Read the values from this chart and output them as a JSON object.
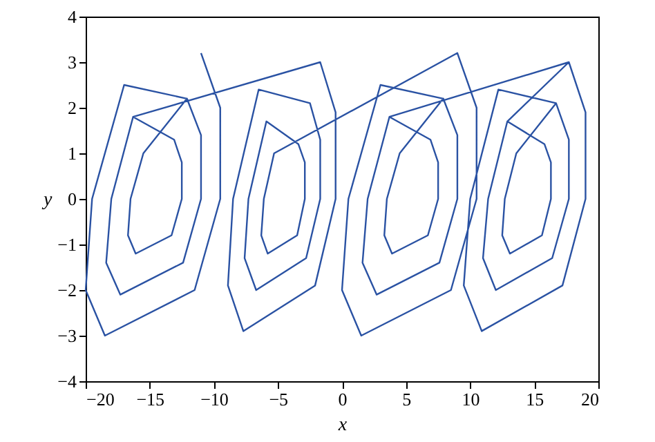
{
  "chart_data": {
    "type": "line",
    "xlabel": "x",
    "ylabel": "y",
    "xlim": [
      -20,
      20
    ],
    "ylim": [
      -4,
      4
    ],
    "xticks": [
      -20,
      -15,
      -10,
      -5,
      0,
      5,
      10,
      15,
      20
    ],
    "yticks": [
      -4,
      -3,
      -2,
      -1,
      0,
      1,
      2,
      3,
      4
    ],
    "grid": false,
    "marker": "none",
    "line_style": "solid",
    "x": [
      -11,
      -9.5,
      -9.5,
      -11.5,
      -18.5,
      -20,
      -19.5,
      -17,
      -12.1,
      -11,
      -11,
      -12.4,
      -17.3,
      -18.4,
      -18,
      -16.3,
      -13.1,
      -12.5,
      -12.5,
      -13.3,
      -16.1,
      -16.7,
      -16.5,
      -15.5,
      -12.1,
      -11,
      -11,
      -12.4,
      -17.3,
      -18.4,
      -18,
      -16.3,
      -1.7,
      -0.5,
      -0.5,
      -2.1,
      -7.7,
      -8.9,
      -8.5,
      -6.5,
      -2.5,
      -1.7,
      -1.7,
      -2.8,
      -6.7,
      -7.6,
      -7.3,
      -5.9,
      -3.4,
      -2.9,
      -2.9,
      -3.5,
      -5.8,
      -6.3,
      -6.1,
      -5.3,
      9,
      10.5,
      10.5,
      8.5,
      1.5,
      0,
      0.5,
      3,
      7.9,
      9,
      9,
      7.6,
      2.7,
      1.6,
      2,
      3.7,
      6.9,
      7.5,
      7.5,
      6.7,
      3.9,
      3.3,
      3.5,
      4.5,
      7.9,
      9,
      9,
      7.6,
      2.7,
      1.6,
      2,
      3.7,
      17.7,
      19,
      19,
      17.2,
      10.9,
      9.5,
      10,
      12.2,
      16.7,
      17.7,
      17.7,
      16.4,
      12,
      11,
      11.4,
      12.9,
      15.8,
      16.3,
      16.3,
      15.6,
      13.1,
      12.5,
      12.7,
      13.6,
      16.7,
      17.7,
      17.7,
      16.4,
      12,
      11,
      11.4,
      12.9,
      17.7,
      19,
      19,
      17.2,
      10.9,
      9.5,
      10,
      12.2
    ],
    "series": [
      {
        "color": "#2a52a3",
        "values": [
          3.2,
          2,
          0,
          -2,
          -3,
          -2,
          0,
          2.5,
          2.2,
          1.4,
          0,
          -1.4,
          -2.1,
          -1.4,
          0,
          1.8,
          1.3,
          0.8,
          0,
          -0.8,
          -1.2,
          -0.8,
          0,
          1,
          2.2,
          1.4,
          0,
          -1.4,
          -2.1,
          -1.4,
          0,
          1.8,
          3,
          1.9,
          0,
          -1.9,
          -2.9,
          -1.9,
          0,
          2.4,
          2.1,
          1.3,
          0,
          -1.3,
          -2,
          -1.3,
          0,
          1.7,
          1.2,
          0.8,
          0,
          -0.8,
          -1.2,
          -0.8,
          0,
          1,
          3.2,
          2,
          0,
          -2,
          -3,
          -2,
          0,
          2.5,
          2.2,
          1.4,
          0,
          -1.4,
          -2.1,
          -1.4,
          0,
          1.8,
          1.3,
          0.8,
          0,
          -0.8,
          -1.2,
          -0.8,
          0,
          1,
          2.2,
          1.4,
          0,
          -1.4,
          -2.1,
          -1.4,
          0,
          1.8,
          3,
          1.9,
          0,
          -1.9,
          -2.9,
          -1.9,
          0,
          2.4,
          2.1,
          1.3,
          0,
          -1.3,
          -2,
          -1.3,
          0,
          1.7,
          1.2,
          0.8,
          0,
          -0.8,
          -1.2,
          -0.8,
          0,
          1,
          2.1,
          1.3,
          0,
          -1.3,
          -2,
          -1.3,
          0,
          1.7,
          3,
          1.9,
          0,
          -1.9,
          -2.9,
          -1.9,
          0,
          2.4
        ]
      }
    ]
  }
}
